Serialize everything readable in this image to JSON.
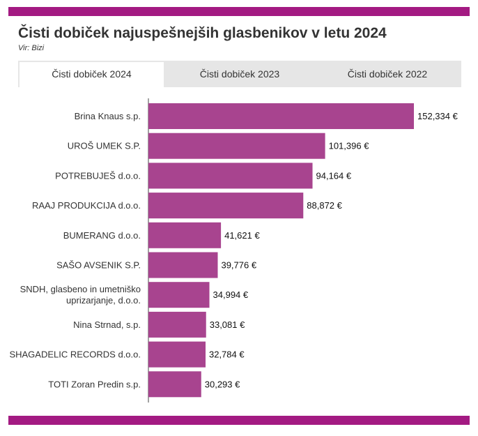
{
  "header": {
    "title": "Čisti dobiček najuspešnejših glasbenikov v letu 2024",
    "source": "Vir: Bizi"
  },
  "tabs": [
    {
      "label": "Čisti dobiček 2024",
      "active": true
    },
    {
      "label": "Čisti dobiček 2023",
      "active": false
    },
    {
      "label": "Čisti dobiček 2022",
      "active": false
    }
  ],
  "colors": {
    "accent": "#a31a82",
    "bar": "#a8448f",
    "tab_bg": "#e6e6e6"
  },
  "chart_data": {
    "type": "bar",
    "orientation": "horizontal",
    "categories": [
      [
        "Brina Knaus s.p."
      ],
      [
        "UROŠ UMEK S.P."
      ],
      [
        "POTREBUJEŠ d.o.o."
      ],
      [
        "RAAJ PRODUKCIJA d.o.o."
      ],
      [
        "BUMERANG d.o.o."
      ],
      [
        "SAŠO AVSENIK S.P."
      ],
      [
        "SNDH, glasbeno in umetniško",
        "uprizarjanje, d.o.o."
      ],
      [
        "Nina Strnad, s.p."
      ],
      [
        "SHAGADELIC RECORDS d.o.o."
      ],
      [
        "TOTI Zoran Predin s.p."
      ]
    ],
    "values": [
      152334,
      101396,
      94164,
      88872,
      41621,
      39776,
      34994,
      33081,
      32784,
      30293
    ],
    "value_labels": [
      "152,334 €",
      "101,396 €",
      "94,164 €",
      "88,872 €",
      "41,621 €",
      "39,776 €",
      "34,994 €",
      "33,081 €",
      "32,784 €",
      "30,293 €"
    ],
    "xlim": [
      0,
      152334
    ],
    "grid": false
  }
}
